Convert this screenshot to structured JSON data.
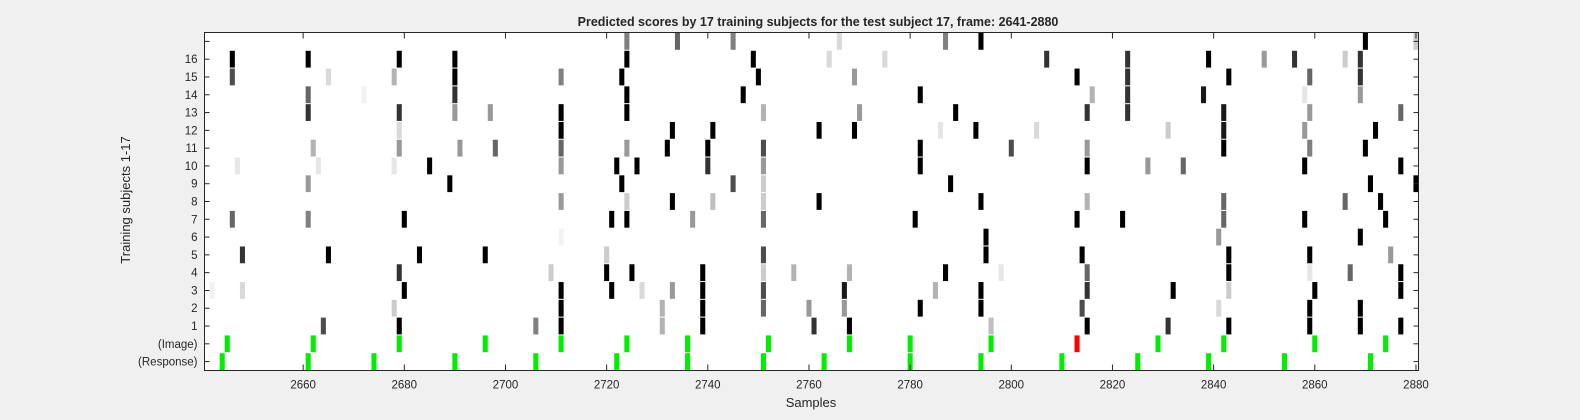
{
  "chart_data": {
    "type": "heatmap",
    "title": "Predicted scores by 17 training subjects for the test subject 17, frame: 2641-2880",
    "xlabel": "Samples",
    "ylabel": "Training subjects 1-17",
    "xlim": [
      2641,
      2880
    ],
    "x_ticks": [
      2660,
      2680,
      2700,
      2720,
      2740,
      2760,
      2780,
      2800,
      2820,
      2840,
      2860,
      2880
    ],
    "y_rows": [
      "(Response)",
      "(Image)",
      "1",
      "2",
      "3",
      "4",
      "5",
      "6",
      "7",
      "8",
      "9",
      "10",
      "11",
      "12",
      "13",
      "14",
      "15",
      "16",
      "17"
    ],
    "y_tick_labels": [
      "(Response)",
      "(Image)",
      "1",
      "2",
      "3",
      "4",
      "5",
      "6",
      "7",
      "8",
      "9",
      "10",
      "11",
      "12",
      "13",
      "14",
      "15",
      "16",
      ""
    ],
    "colors": {
      "marker": "#00ee00",
      "error_marker": "#ff0000",
      "score": "#000000"
    },
    "markers": {
      "response": [
        2644,
        2661,
        2674,
        2690,
        2706,
        2722,
        2736,
        2751,
        2763,
        2780,
        2794,
        2810,
        2825,
        2839,
        2854,
        2871
      ],
      "image": [
        2645,
        2662,
        2679,
        2696,
        2711,
        2724,
        2736,
        2752,
        2768,
        2780,
        2796,
        2829,
        2842,
        2860,
        2874
      ],
      "image_error": [
        2813
      ]
    },
    "scores": {
      "1": [
        [
          2664,
          0.7
        ],
        [
          2679,
          1.0
        ],
        [
          2706,
          0.5
        ],
        [
          2711,
          1.0
        ],
        [
          2731,
          0.3
        ],
        [
          2739,
          1.0
        ],
        [
          2761,
          0.8
        ],
        [
          2768,
          1.0
        ],
        [
          2796,
          0.25
        ],
        [
          2815,
          1.0
        ],
        [
          2831,
          0.8
        ],
        [
          2843,
          1.0
        ],
        [
          2859,
          1.0
        ],
        [
          2869,
          1.0
        ],
        [
          2877,
          1.0
        ]
      ],
      "2": [
        [
          2678,
          0.2
        ],
        [
          2711,
          1.0
        ],
        [
          2731,
          0.3
        ],
        [
          2739,
          1.0
        ],
        [
          2751,
          0.6
        ],
        [
          2760,
          0.4
        ],
        [
          2767,
          0.4
        ],
        [
          2782,
          1.0
        ],
        [
          2794,
          1.0
        ],
        [
          2814,
          0.7
        ],
        [
          2841,
          0.15
        ],
        [
          2859,
          1.0
        ],
        [
          2869,
          1.0
        ]
      ],
      "3": [
        [
          2642,
          0.05
        ],
        [
          2648,
          0.15
        ],
        [
          2680,
          1.0
        ],
        [
          2711,
          1.0
        ],
        [
          2721,
          1.0
        ],
        [
          2727,
          0.15
        ],
        [
          2733,
          0.4
        ],
        [
          2739,
          1.0
        ],
        [
          2751,
          0.7
        ],
        [
          2767,
          0.9
        ],
        [
          2785,
          0.3
        ],
        [
          2794,
          1.0
        ],
        [
          2815,
          0.8
        ],
        [
          2832,
          1.0
        ],
        [
          2843,
          0.2
        ],
        [
          2860,
          1.0
        ],
        [
          2877,
          1.0
        ]
      ],
      "4": [
        [
          2679,
          0.8
        ],
        [
          2709,
          0.2
        ],
        [
          2720,
          1.0
        ],
        [
          2725,
          1.0
        ],
        [
          2739,
          1.0
        ],
        [
          2751,
          0.2
        ],
        [
          2757,
          0.3
        ],
        [
          2768,
          0.3
        ],
        [
          2787,
          1.0
        ],
        [
          2798,
          0.1
        ],
        [
          2815,
          0.6
        ],
        [
          2843,
          1.0
        ],
        [
          2859,
          0.1
        ],
        [
          2867,
          0.6
        ],
        [
          2877,
          1.0
        ]
      ],
      "5": [
        [
          2648,
          0.8
        ],
        [
          2665,
          1.0
        ],
        [
          2683,
          1.0
        ],
        [
          2696,
          1.0
        ],
        [
          2720,
          0.2
        ],
        [
          2751,
          0.7
        ],
        [
          2795,
          1.0
        ],
        [
          2814,
          1.0
        ],
        [
          2843,
          1.0
        ],
        [
          2859,
          1.0
        ],
        [
          2875,
          0.4
        ]
      ],
      "6": [
        [
          2711,
          0.05
        ],
        [
          2795,
          1.0
        ],
        [
          2841,
          0.4
        ],
        [
          2869,
          1.0
        ]
      ],
      "7": [
        [
          2646,
          0.6
        ],
        [
          2661,
          0.5
        ],
        [
          2680,
          1.0
        ],
        [
          2721,
          1.0
        ],
        [
          2724,
          1.0
        ],
        [
          2737,
          0.4
        ],
        [
          2751,
          0.6
        ],
        [
          2781,
          1.0
        ],
        [
          2813,
          1.0
        ],
        [
          2822,
          1.0
        ],
        [
          2842,
          0.6
        ],
        [
          2858,
          1.0
        ],
        [
          2874,
          1.0
        ]
      ],
      "8": [
        [
          2711,
          0.4
        ],
        [
          2724,
          0.2
        ],
        [
          2733,
          1.0
        ],
        [
          2741,
          0.25
        ],
        [
          2751,
          0.2
        ],
        [
          2762,
          1.0
        ],
        [
          2794,
          1.0
        ],
        [
          2815,
          0.3
        ],
        [
          2842,
          0.6
        ],
        [
          2866,
          0.6
        ],
        [
          2873,
          1.0
        ]
      ],
      "9": [
        [
          2661,
          0.4
        ],
        [
          2689,
          1.0
        ],
        [
          2723,
          1.0
        ],
        [
          2745,
          0.7
        ],
        [
          2751,
          0.2
        ],
        [
          2788,
          1.0
        ],
        [
          2871,
          1.0
        ],
        [
          2880,
          1.0
        ]
      ],
      "10": [
        [
          2647,
          0.1
        ],
        [
          2663,
          0.1
        ],
        [
          2678,
          0.1
        ],
        [
          2685,
          1.0
        ],
        [
          2711,
          0.4
        ],
        [
          2722,
          1.0
        ],
        [
          2726,
          1.0
        ],
        [
          2740,
          0.8
        ],
        [
          2751,
          0.4
        ],
        [
          2782,
          1.0
        ],
        [
          2815,
          1.0
        ],
        [
          2827,
          0.4
        ],
        [
          2834,
          0.6
        ],
        [
          2858,
          1.0
        ],
        [
          2877,
          1.0
        ]
      ],
      "11": [
        [
          2662,
          0.3
        ],
        [
          2679,
          0.4
        ],
        [
          2691,
          0.4
        ],
        [
          2698,
          0.6
        ],
        [
          2711,
          0.6
        ],
        [
          2724,
          0.4
        ],
        [
          2732,
          1.0
        ],
        [
          2740,
          1.0
        ],
        [
          2751,
          0.7
        ],
        [
          2782,
          1.0
        ],
        [
          2800,
          0.7
        ],
        [
          2815,
          0.4
        ],
        [
          2842,
          1.0
        ],
        [
          2859,
          0.5
        ],
        [
          2870,
          1.0
        ]
      ],
      "12": [
        [
          2679,
          0.15
        ],
        [
          2711,
          1.0
        ],
        [
          2733,
          1.0
        ],
        [
          2741,
          1.0
        ],
        [
          2762,
          1.0
        ],
        [
          2769,
          1.0
        ],
        [
          2786,
          0.1
        ],
        [
          2793,
          1.0
        ],
        [
          2805,
          0.15
        ],
        [
          2831,
          0.2
        ],
        [
          2842,
          0.9
        ],
        [
          2858,
          0.4
        ],
        [
          2872,
          1.0
        ]
      ],
      "13": [
        [
          2661,
          0.8
        ],
        [
          2679,
          0.8
        ],
        [
          2690,
          0.4
        ],
        [
          2697,
          0.4
        ],
        [
          2711,
          1.0
        ],
        [
          2724,
          1.0
        ],
        [
          2751,
          0.3
        ],
        [
          2770,
          0.4
        ],
        [
          2789,
          1.0
        ],
        [
          2815,
          0.8
        ],
        [
          2823,
          0.8
        ],
        [
          2842,
          0.9
        ],
        [
          2859,
          0.4
        ],
        [
          2877,
          0.6
        ]
      ],
      "14": [
        [
          2661,
          0.6
        ],
        [
          2672,
          0.05
        ],
        [
          2690,
          0.8
        ],
        [
          2724,
          1.0
        ],
        [
          2747,
          1.0
        ],
        [
          2782,
          1.0
        ],
        [
          2816,
          0.3
        ],
        [
          2823,
          0.8
        ],
        [
          2838,
          0.9
        ],
        [
          2858,
          0.1
        ],
        [
          2869,
          0.4
        ]
      ],
      "15": [
        [
          2646,
          0.7
        ],
        [
          2665,
          0.15
        ],
        [
          2678,
          0.3
        ],
        [
          2690,
          1.0
        ],
        [
          2711,
          0.5
        ],
        [
          2723,
          1.0
        ],
        [
          2750,
          1.0
        ],
        [
          2769,
          0.4
        ],
        [
          2813,
          1.0
        ],
        [
          2823,
          0.8
        ],
        [
          2843,
          1.0
        ],
        [
          2859,
          0.6
        ],
        [
          2869,
          0.8
        ]
      ],
      "16": [
        [
          2646,
          1.0
        ],
        [
          2661,
          1.0
        ],
        [
          2679,
          1.0
        ],
        [
          2690,
          1.0
        ],
        [
          2724,
          1.0
        ],
        [
          2749,
          1.0
        ],
        [
          2764,
          0.15
        ],
        [
          2775,
          0.15
        ],
        [
          2807,
          0.8
        ],
        [
          2823,
          0.8
        ],
        [
          2839,
          1.0
        ],
        [
          2850,
          0.4
        ],
        [
          2856,
          0.8
        ],
        [
          2866,
          0.2
        ],
        [
          2869,
          0.8
        ]
      ],
      "17": [
        [
          2724,
          0.5
        ],
        [
          2734,
          0.6
        ],
        [
          2745,
          0.5
        ],
        [
          2766,
          0.15
        ],
        [
          2787,
          0.5
        ],
        [
          2794,
          1.0
        ],
        [
          2870,
          1.0
        ],
        [
          2880,
          0.2
        ]
      ]
    }
  }
}
